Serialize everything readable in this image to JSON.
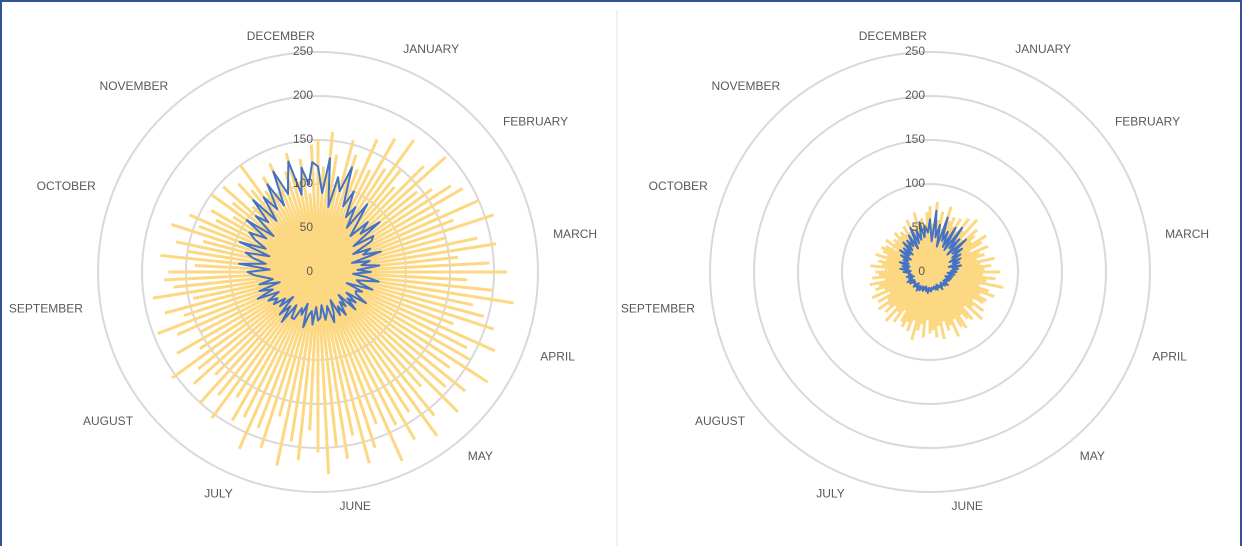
{
  "chart_data": [
    {
      "type": "radar",
      "months": [
        "JANUARY",
        "FEBRUARY",
        "MARCH",
        "APRIL",
        "MAY",
        "JUNE",
        "JULY",
        "AUGUST",
        "SEPTEMBER",
        "OCTOBER",
        "NOVEMBER",
        "DECEMBER"
      ],
      "rlim": [
        0,
        250
      ],
      "rticks": [
        0,
        50,
        100,
        150,
        200,
        250
      ],
      "grid": true,
      "series": [
        {
          "color": "#fdd882",
          "style": "spike",
          "values": [
            150,
            120,
            160,
            135,
            110,
            155,
            140,
            125,
            165,
            130,
            175,
            140,
            185,
            150,
            130,
            170,
            195,
            145,
            160,
            180,
            190,
            155,
            200,
            165,
            210,
            150,
            185,
            205,
            160,
            195,
            215,
            170,
            200,
            225,
            180,
            195,
            210,
            165,
            220,
            190,
            200,
            230,
            185,
            215,
            195,
            225,
            175,
            210,
            230,
            190,
            220,
            195,
            235,
            185,
            210,
            225,
            190,
            215,
            200,
            230,
            205,
            180,
            215,
            195,
            225,
            170,
            210,
            190,
            220,
            185,
            195,
            170,
            205,
            180,
            200,
            165,
            190,
            175,
            205,
            160,
            185,
            150,
            175,
            195,
            160,
            180,
            145,
            190,
            165,
            175,
            170,
            140,
            180,
            150,
            165,
            135,
            175,
            145,
            160,
            130,
            140,
            115,
            150,
            125,
            145,
            105,
            135,
            120,
            150,
            110,
            125,
            100,
            135,
            95,
            120,
            140,
            105,
            130,
            90,
            145
          ]
        },
        {
          "color": "#4472c4",
          "style": "line",
          "values": [
            120,
            90,
            130,
            75,
            110,
            95,
            125,
            80,
            100,
            70,
            85,
            60,
            95,
            70,
            55,
            80,
            65,
            90,
            50,
            75,
            70,
            45,
            65,
            55,
            75,
            40,
            60,
            50,
            70,
            45,
            60,
            40,
            55,
            70,
            45,
            50,
            65,
            35,
            55,
            48,
            50,
            65,
            40,
            55,
            45,
            60,
            35,
            50,
            42,
            58,
            45,
            55,
            35,
            50,
            60,
            40,
            48,
            55,
            38,
            52,
            55,
            40,
            60,
            45,
            50,
            65,
            38,
            52,
            45,
            60,
            60,
            45,
            70,
            50,
            65,
            40,
            58,
            48,
            62,
            55,
            65,
            50,
            75,
            55,
            70,
            45,
            68,
            52,
            60,
            72,
            80,
            55,
            90,
            60,
            75,
            85,
            58,
            95,
            65,
            80,
            90,
            70,
            100,
            65,
            95,
            80,
            110,
            75,
            105,
            85,
            115,
            85,
            125,
            95,
            110,
            130,
            90,
            120,
            100,
            125
          ]
        }
      ]
    },
    {
      "type": "radar",
      "months": [
        "JANUARY",
        "FEBRUARY",
        "MARCH",
        "APRIL",
        "MAY",
        "JUNE",
        "JULY",
        "AUGUST",
        "SEPTEMBER",
        "OCTOBER",
        "NOVEMBER",
        "DECEMBER"
      ],
      "rlim": [
        0,
        250
      ],
      "rticks": [
        0,
        50,
        100,
        150,
        200,
        250
      ],
      "grid": true,
      "series": [
        {
          "color": "#fdd882",
          "style": "spike",
          "values": [
            75,
            55,
            80,
            60,
            70,
            50,
            78,
            62,
            68,
            58,
            70,
            55,
            75,
            60,
            80,
            52,
            72,
            65,
            58,
            76,
            68,
            50,
            72,
            60,
            65,
            55,
            75,
            58,
            70,
            62,
            80,
            60,
            75,
            65,
            85,
            58,
            70,
            78,
            62,
            72,
            70,
            58,
            75,
            62,
            80,
            55,
            72,
            68,
            60,
            76,
            72,
            60,
            80,
            65,
            70,
            58,
            78,
            62,
            75,
            66,
            70,
            55,
            75,
            60,
            68,
            80,
            58,
            72,
            62,
            70,
            65,
            52,
            70,
            58,
            75,
            55,
            68,
            60,
            72,
            57,
            68,
            50,
            72,
            55,
            65,
            60,
            70,
            52,
            66,
            58,
            62,
            48,
            68,
            55,
            60,
            50,
            65,
            52,
            58,
            62,
            58,
            45,
            62,
            50,
            55,
            48,
            60,
            52,
            56,
            50,
            60,
            48,
            65,
            52,
            58,
            70,
            50,
            62,
            55,
            68
          ]
        },
        {
          "color": "#4472c4",
          "style": "line",
          "values": [
            60,
            35,
            70,
            40,
            55,
            30,
            65,
            38,
            50,
            32,
            58,
            30,
            62,
            35,
            50,
            28,
            55,
            33,
            45,
            30,
            40,
            25,
            38,
            28,
            35,
            22,
            36,
            26,
            32,
            24,
            30,
            20,
            28,
            22,
            26,
            18,
            25,
            20,
            24,
            19,
            22,
            18,
            25,
            20,
            23,
            17,
            21,
            19,
            24,
            18,
            20,
            16,
            22,
            18,
            21,
            17,
            19,
            20,
            18,
            22,
            21,
            18,
            24,
            19,
            22,
            17,
            20,
            23,
            18,
            21,
            24,
            19,
            26,
            20,
            23,
            18,
            25,
            21,
            22,
            20,
            26,
            20,
            28,
            22,
            25,
            19,
            27,
            21,
            24,
            23,
            30,
            22,
            34,
            25,
            32,
            24,
            36,
            26,
            33,
            28,
            38,
            26,
            42,
            30,
            40,
            28,
            45,
            32,
            44,
            35,
            48,
            30,
            55,
            35,
            50,
            38,
            58,
            40,
            52,
            45
          ]
        }
      ]
    }
  ]
}
